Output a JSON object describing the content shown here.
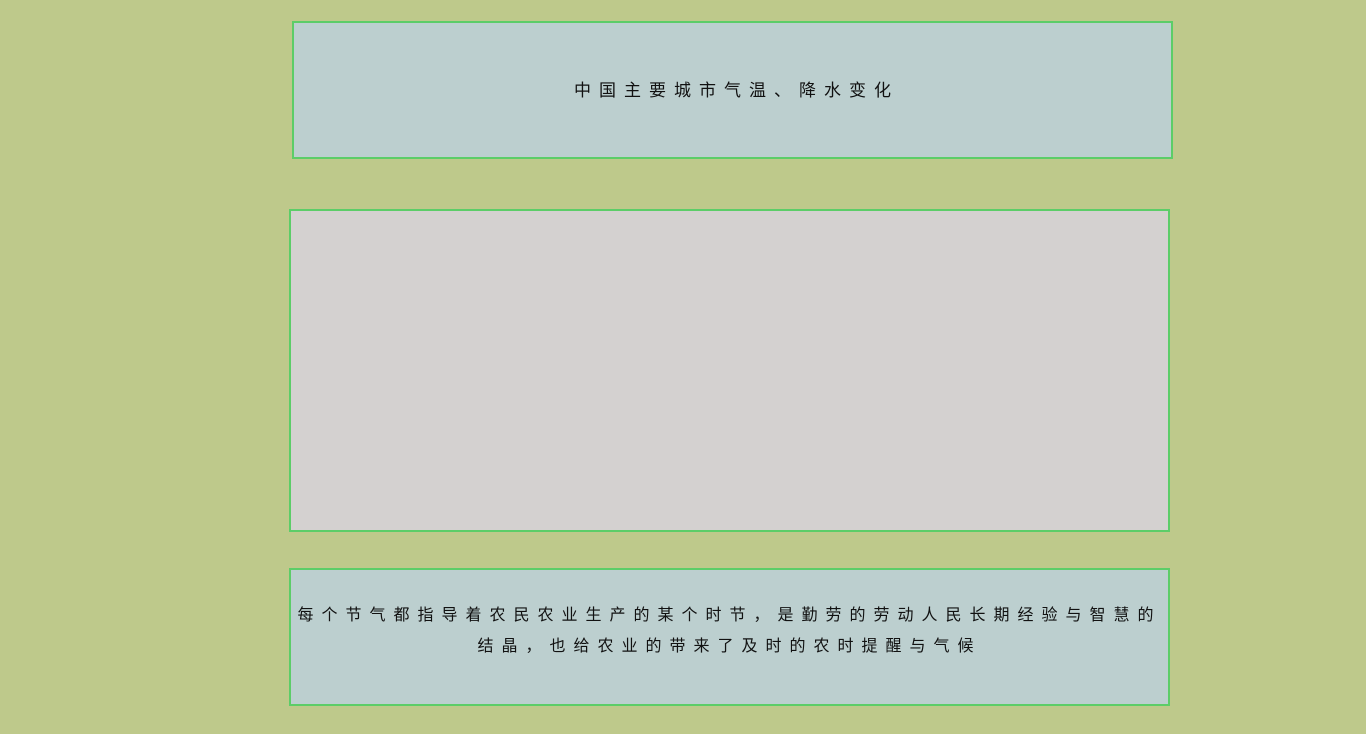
{
  "header": {
    "title": "中国主要城市气温、降水变化"
  },
  "footer": {
    "description": "每个节气都指导着农民农业生产的某个时节，是勤劳的劳动人民长期经验与智慧的结晶，也给农业的带来了及时的农时提醒与气候"
  },
  "colors": {
    "page_background": "#bec98b",
    "panel_border": "#5ccd68",
    "text_panel_background": "#bccfcf",
    "chart_panel_background": "#d4d1d0"
  }
}
